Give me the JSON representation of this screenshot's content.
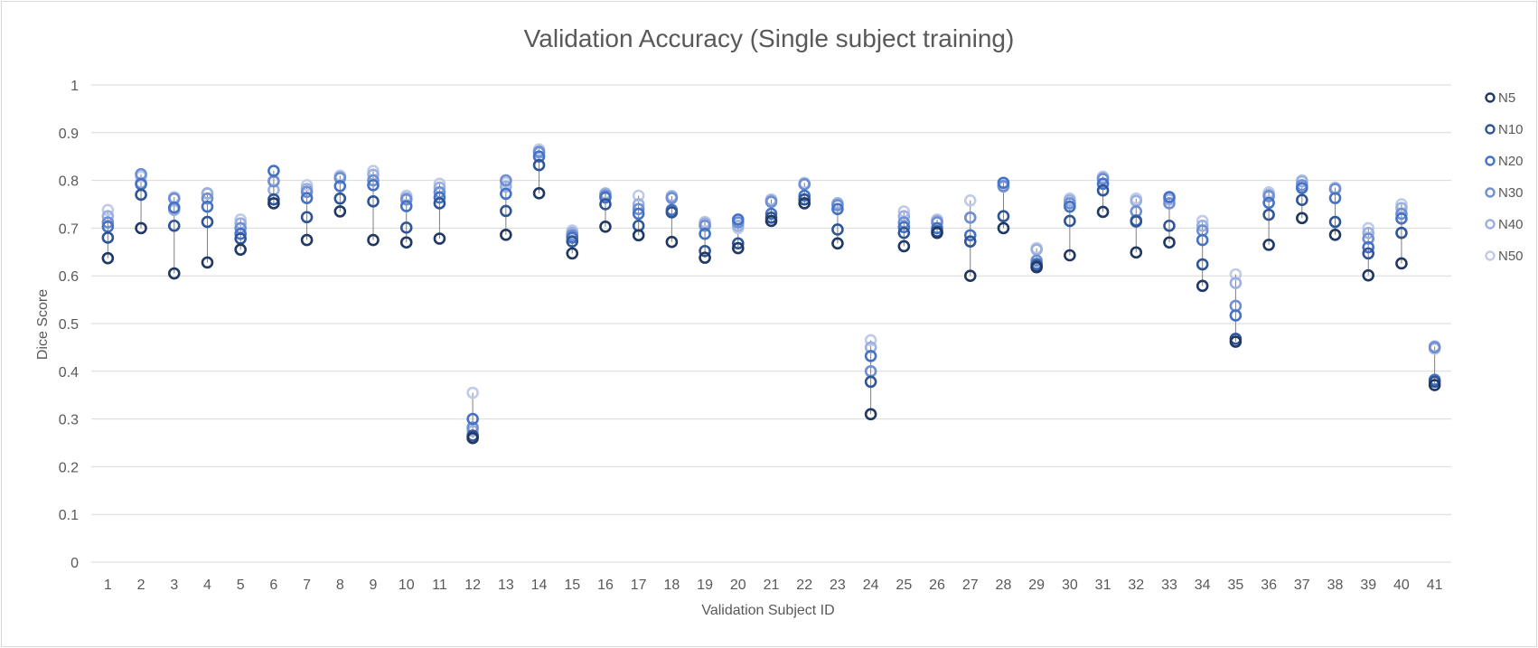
{
  "chart_data": {
    "type": "scatter",
    "title": "Validation Accuracy (Single subject training)",
    "xlabel": "Validation Subject ID",
    "ylabel": "Dice Score",
    "ylim": [
      0,
      1
    ],
    "yticks": [
      "0",
      "0.1",
      "0.2",
      "0.3",
      "0.4",
      "0.5",
      "0.6",
      "0.7",
      "0.8",
      "0.9",
      "1"
    ],
    "categories": [
      "1",
      "2",
      "3",
      "4",
      "5",
      "6",
      "7",
      "8",
      "9",
      "10",
      "11",
      "12",
      "13",
      "14",
      "15",
      "16",
      "17",
      "18",
      "19",
      "20",
      "21",
      "22",
      "23",
      "24",
      "25",
      "26",
      "27",
      "28",
      "29",
      "30",
      "31",
      "32",
      "33",
      "34",
      "35",
      "36",
      "37",
      "38",
      "39",
      "40",
      "41"
    ],
    "grid": true,
    "legend_position": "right",
    "series": [
      {
        "name": "N5",
        "color": "#203864",
        "values": [
          0.637,
          0.7,
          0.605,
          0.628,
          0.655,
          0.752,
          0.675,
          0.735,
          0.675,
          0.67,
          0.678,
          0.26,
          0.686,
          0.773,
          0.647,
          0.703,
          0.685,
          0.671,
          0.638,
          0.658,
          0.715,
          0.752,
          0.668,
          0.31,
          0.662,
          0.69,
          0.6,
          0.7,
          0.618,
          0.643,
          0.734,
          0.649,
          0.67,
          0.579,
          0.462,
          0.665,
          0.721,
          0.686,
          0.601,
          0.626,
          0.371
        ]
      },
      {
        "name": "N10",
        "color": "#2f5597",
        "values": [
          0.68,
          0.77,
          0.705,
          0.713,
          0.678,
          0.76,
          0.723,
          0.762,
          0.756,
          0.701,
          0.752,
          0.265,
          0.736,
          0.832,
          0.672,
          0.75,
          0.705,
          0.733,
          0.652,
          0.668,
          0.722,
          0.76,
          0.697,
          0.378,
          0.69,
          0.693,
          0.672,
          0.725,
          0.621,
          0.715,
          0.779,
          0.714,
          0.705,
          0.624,
          0.468,
          0.728,
          0.759,
          0.713,
          0.647,
          0.69,
          0.378
        ]
      },
      {
        "name": "N20",
        "color": "#4472c4",
        "values": [
          0.703,
          0.792,
          0.743,
          0.745,
          0.688,
          0.82,
          0.763,
          0.788,
          0.79,
          0.746,
          0.764,
          0.3,
          0.772,
          0.85,
          0.68,
          0.764,
          0.73,
          0.738,
          0.688,
          0.718,
          0.73,
          0.768,
          0.74,
          0.432,
          0.702,
          0.7,
          0.685,
          0.795,
          0.625,
          0.745,
          0.793,
          0.716,
          0.765,
          0.675,
          0.517,
          0.753,
          0.784,
          0.763,
          0.66,
          0.72,
          0.382
        ]
      },
      {
        "name": "N30",
        "color": "#6f8fd4",
        "values": [
          0.712,
          0.813,
          0.762,
          0.762,
          0.7,
          0.798,
          0.776,
          0.805,
          0.8,
          0.76,
          0.775,
          0.282,
          0.8,
          0.86,
          0.685,
          0.768,
          0.74,
          0.763,
          0.705,
          0.712,
          0.755,
          0.792,
          0.748,
          0.4,
          0.712,
          0.712,
          0.722,
          0.788,
          0.632,
          0.752,
          0.803,
          0.735,
          0.752,
          0.695,
          0.537,
          0.767,
          0.79,
          0.782,
          0.678,
          0.73,
          0.45
        ]
      },
      {
        "name": "N40",
        "color": "#9cb0e0",
        "values": [
          0.725,
          0.795,
          0.738,
          0.773,
          0.71,
          0.78,
          0.782,
          0.807,
          0.812,
          0.763,
          0.785,
          0.275,
          0.787,
          0.858,
          0.69,
          0.772,
          0.75,
          0.767,
          0.71,
          0.705,
          0.758,
          0.792,
          0.752,
          0.45,
          0.725,
          0.715,
          0.722,
          0.787,
          0.655,
          0.758,
          0.805,
          0.757,
          0.76,
          0.705,
          0.585,
          0.77,
          0.798,
          0.782,
          0.69,
          0.742,
          0.452
        ]
      },
      {
        "name": "N50",
        "color": "#bfcbe9",
        "values": [
          0.738,
          0.808,
          0.765,
          0.772,
          0.718,
          0.8,
          0.79,
          0.81,
          0.82,
          0.768,
          0.793,
          0.355,
          0.795,
          0.865,
          0.695,
          0.773,
          0.768,
          0.765,
          0.713,
          0.7,
          0.76,
          0.795,
          0.752,
          0.465,
          0.735,
          0.718,
          0.758,
          0.79,
          0.658,
          0.762,
          0.808,
          0.762,
          0.76,
          0.715,
          0.603,
          0.775,
          0.8,
          0.785,
          0.7,
          0.75,
          0.447
        ]
      }
    ]
  }
}
